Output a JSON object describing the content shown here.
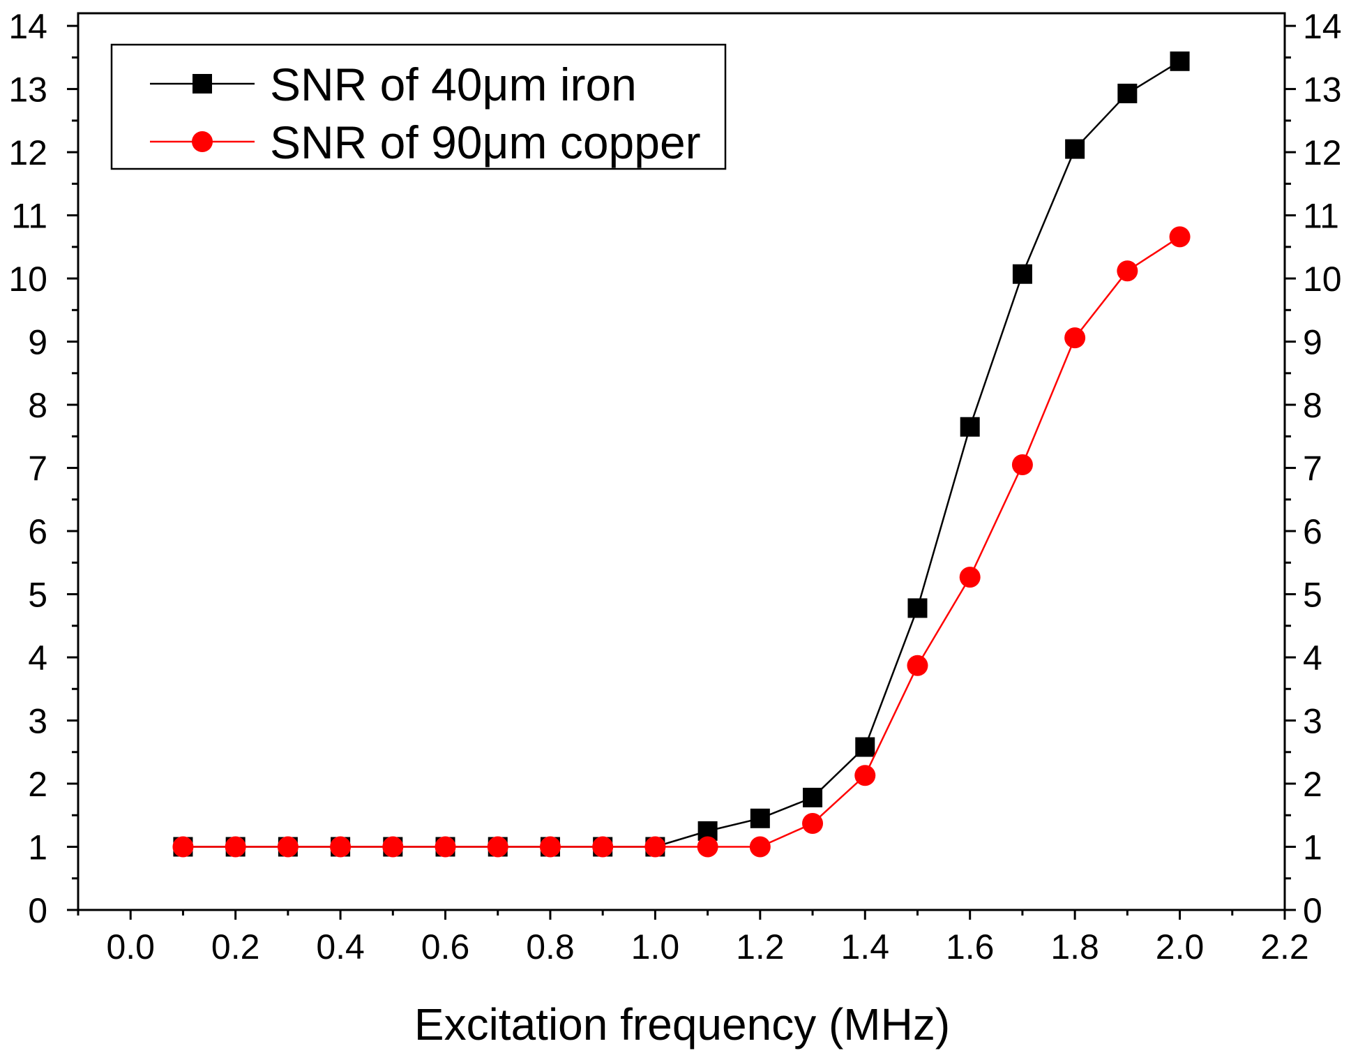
{
  "chart_data": {
    "type": "line",
    "title": "",
    "xlabel": "Excitation frequency (MHz)",
    "ylabel": "",
    "xlim": [
      -0.1,
      2.2
    ],
    "ylim": [
      0,
      14.2
    ],
    "x_ticks": [
      "0.0",
      "0.2",
      "0.4",
      "0.6",
      "0.8",
      "1.0",
      "1.2",
      "1.4",
      "1.6",
      "1.8",
      "2.0",
      "2.2"
    ],
    "y_ticks": [
      "0",
      "1",
      "2",
      "3",
      "4",
      "5",
      "6",
      "7",
      "8",
      "9",
      "10",
      "11",
      "12",
      "13",
      "14"
    ],
    "x": [
      0.1,
      0.2,
      0.3,
      0.4,
      0.5,
      0.6,
      0.7,
      0.8,
      0.9,
      1.0,
      1.1,
      1.2,
      1.3,
      1.4,
      1.5,
      1.6,
      1.7,
      1.8,
      1.9,
      2.0
    ],
    "series": [
      {
        "name": "SNR of 40μm iron",
        "color": "#000000",
        "marker": "square",
        "values": [
          1,
          1,
          1,
          1,
          1,
          1,
          1,
          1,
          1,
          1,
          1.25,
          1.45,
          1.78,
          2.58,
          4.78,
          7.65,
          10.07,
          12.05,
          12.93,
          13.44
        ]
      },
      {
        "name": "SNR of 90μm copper",
        "color": "#ff0000",
        "marker": "circle",
        "values": [
          1,
          1,
          1,
          1,
          1,
          1,
          1,
          1,
          1,
          1,
          1,
          1,
          1.37,
          2.13,
          3.87,
          5.27,
          7.05,
          9.06,
          10.12,
          10.66
        ]
      }
    ],
    "legend": {
      "position": "top-left"
    },
    "grid": false
  }
}
